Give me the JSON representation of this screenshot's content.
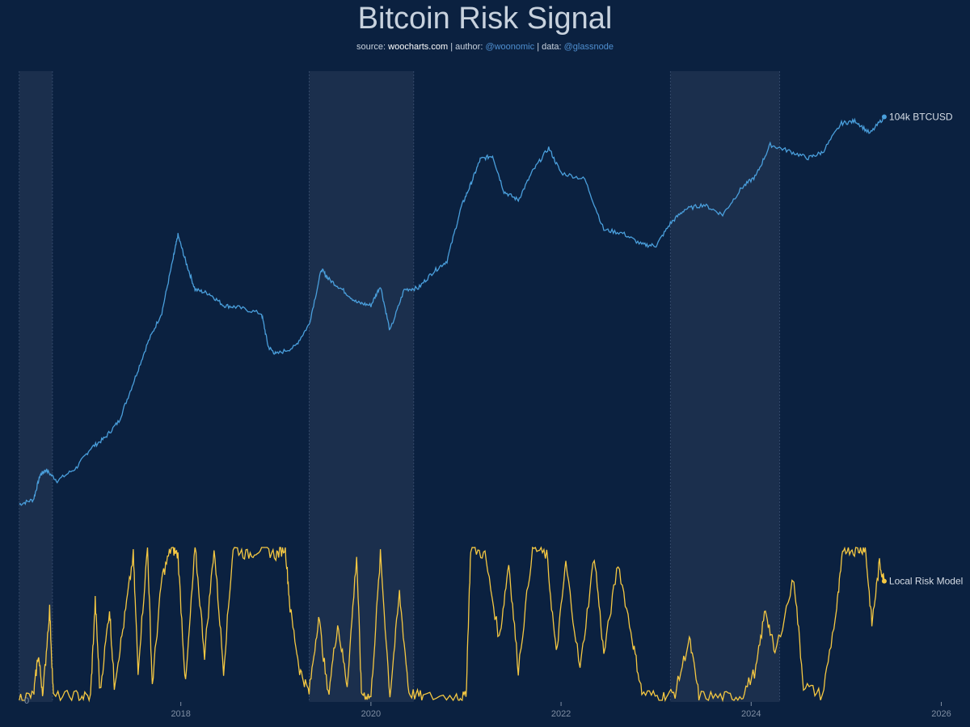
{
  "header": {
    "title": "Bitcoin Risk Signal",
    "subtitle": {
      "source_prefix": "source: ",
      "source": "woocharts.com",
      "author_prefix": " | author: ",
      "author": "@woonomic",
      "data_prefix": " | data: ",
      "data": "@glassnode"
    }
  },
  "colors": {
    "background": "#0b2140",
    "price_line": "#4a9fdc",
    "risk_line": "#f5c842",
    "shaded_band": "#1f3150",
    "tick_text": "#7f8ea3",
    "end_label_text": "#d6dde6"
  },
  "chart_data": {
    "type": "line",
    "title": "Bitcoin Risk Signal",
    "x_axis": {
      "ticks": [
        "2018",
        "2020",
        "2022",
        "2024",
        "2026"
      ],
      "range": [
        2016.2,
        2026.2
      ]
    },
    "y_axis_risk": {
      "ticks": [
        "0"
      ],
      "range": [
        0,
        1
      ]
    },
    "y_axis_price": {
      "scale": "log",
      "range": [
        300,
        130000
      ],
      "labels_shown": false
    },
    "shaded_periods": [
      {
        "start": 2016.3,
        "end": 2016.65
      },
      {
        "start": 2019.35,
        "end": 2020.45
      },
      {
        "start": 2023.15,
        "end": 2024.3
      }
    ],
    "series": [
      {
        "name": "BTCUSD",
        "end_label": "104k BTCUSD",
        "points": [
          [
            2016.3,
            430
          ],
          [
            2016.45,
            460
          ],
          [
            2016.52,
            650
          ],
          [
            2016.58,
            700
          ],
          [
            2016.7,
            600
          ],
          [
            2016.9,
            720
          ],
          [
            2017.05,
            950
          ],
          [
            2017.2,
            1100
          ],
          [
            2017.35,
            1400
          ],
          [
            2017.5,
            2400
          ],
          [
            2017.65,
            4200
          ],
          [
            2017.8,
            6500
          ],
          [
            2017.92,
            14000
          ],
          [
            2017.97,
            19500
          ],
          [
            2018.05,
            13500
          ],
          [
            2018.15,
            9000
          ],
          [
            2018.3,
            8500
          ],
          [
            2018.45,
            7200
          ],
          [
            2018.6,
            7000
          ],
          [
            2018.85,
            6400
          ],
          [
            2018.92,
            4000
          ],
          [
            2019.0,
            3600
          ],
          [
            2019.2,
            4000
          ],
          [
            2019.35,
            5500
          ],
          [
            2019.48,
            12000
          ],
          [
            2019.55,
            10500
          ],
          [
            2019.7,
            9000
          ],
          [
            2019.85,
            7500
          ],
          [
            2020.0,
            7200
          ],
          [
            2020.1,
            9500
          ],
          [
            2020.2,
            5000
          ],
          [
            2020.35,
            9000
          ],
          [
            2020.5,
            9200
          ],
          [
            2020.65,
            11500
          ],
          [
            2020.8,
            13500
          ],
          [
            2020.95,
            29000
          ],
          [
            2021.05,
            40000
          ],
          [
            2021.15,
            57000
          ],
          [
            2021.28,
            60000
          ],
          [
            2021.4,
            36000
          ],
          [
            2021.55,
            32000
          ],
          [
            2021.7,
            48000
          ],
          [
            2021.87,
            67000
          ],
          [
            2022.0,
            47000
          ],
          [
            2022.25,
            43000
          ],
          [
            2022.45,
            21000
          ],
          [
            2022.65,
            20000
          ],
          [
            2022.85,
            17000
          ],
          [
            2023.0,
            16800
          ],
          [
            2023.15,
            23000
          ],
          [
            2023.3,
            28000
          ],
          [
            2023.5,
            30000
          ],
          [
            2023.7,
            26000
          ],
          [
            2023.9,
            38000
          ],
          [
            2024.05,
            45000
          ],
          [
            2024.2,
            70000
          ],
          [
            2024.4,
            64000
          ],
          [
            2024.6,
            58000
          ],
          [
            2024.75,
            63000
          ],
          [
            2024.95,
            95000
          ],
          [
            2025.1,
            98000
          ],
          [
            2025.25,
            82000
          ],
          [
            2025.4,
            104000
          ]
        ]
      },
      {
        "name": "Local Risk Model",
        "end_label": "Local Risk Model",
        "points": [
          [
            2016.3,
            0.02
          ],
          [
            2016.45,
            0.03
          ],
          [
            2016.5,
            0.3
          ],
          [
            2016.55,
            0.04
          ],
          [
            2016.62,
            0.6
          ],
          [
            2016.66,
            0.02
          ],
          [
            2016.9,
            0.03
          ],
          [
            2017.05,
            0.02
          ],
          [
            2017.1,
            0.65
          ],
          [
            2017.15,
            0.05
          ],
          [
            2017.25,
            0.6
          ],
          [
            2017.3,
            0.1
          ],
          [
            2017.4,
            0.5
          ],
          [
            2017.5,
            0.95
          ],
          [
            2017.55,
            0.2
          ],
          [
            2017.65,
            1.0
          ],
          [
            2017.7,
            0.1
          ],
          [
            2017.8,
            0.8
          ],
          [
            2017.9,
            1.0
          ],
          [
            2017.97,
            0.95
          ],
          [
            2018.05,
            0.1
          ],
          [
            2018.15,
            1.0
          ],
          [
            2018.25,
            0.3
          ],
          [
            2018.35,
            1.0
          ],
          [
            2018.45,
            0.2
          ],
          [
            2018.55,
            1.0
          ],
          [
            2018.7,
            0.95
          ],
          [
            2018.85,
            1.0
          ],
          [
            2019.0,
            0.95
          ],
          [
            2019.1,
            1.0
          ],
          [
            2019.15,
            0.6
          ],
          [
            2019.25,
            0.2
          ],
          [
            2019.35,
            0.05
          ],
          [
            2019.45,
            0.55
          ],
          [
            2019.55,
            0.03
          ],
          [
            2019.65,
            0.5
          ],
          [
            2019.75,
            0.1
          ],
          [
            2019.85,
            0.95
          ],
          [
            2019.9,
            0.05
          ],
          [
            2020.0,
            0.02
          ],
          [
            2020.1,
            0.95
          ],
          [
            2020.2,
            0.03
          ],
          [
            2020.3,
            0.7
          ],
          [
            2020.4,
            0.05
          ],
          [
            2020.55,
            0.02
          ],
          [
            2020.9,
            0.03
          ],
          [
            2021.0,
            0.02
          ],
          [
            2021.05,
            1.0
          ],
          [
            2021.2,
            0.95
          ],
          [
            2021.35,
            0.4
          ],
          [
            2021.45,
            0.9
          ],
          [
            2021.55,
            0.2
          ],
          [
            2021.7,
            1.0
          ],
          [
            2021.85,
            0.95
          ],
          [
            2021.95,
            0.3
          ],
          [
            2022.05,
            0.9
          ],
          [
            2022.2,
            0.2
          ],
          [
            2022.35,
            0.95
          ],
          [
            2022.45,
            0.3
          ],
          [
            2022.6,
            0.9
          ],
          [
            2022.75,
            0.4
          ],
          [
            2022.85,
            0.05
          ],
          [
            2023.05,
            0.02
          ],
          [
            2023.2,
            0.05
          ],
          [
            2023.35,
            0.4
          ],
          [
            2023.45,
            0.03
          ],
          [
            2023.7,
            0.02
          ],
          [
            2023.9,
            0.03
          ],
          [
            2024.05,
            0.2
          ],
          [
            2024.15,
            0.6
          ],
          [
            2024.25,
            0.3
          ],
          [
            2024.45,
            0.8
          ],
          [
            2024.55,
            0.1
          ],
          [
            2024.75,
            0.03
          ],
          [
            2024.9,
            0.6
          ],
          [
            2024.97,
            1.0
          ],
          [
            2025.1,
            0.98
          ],
          [
            2025.2,
            1.0
          ],
          [
            2025.27,
            0.5
          ],
          [
            2025.35,
            0.9
          ],
          [
            2025.4,
            0.78
          ]
        ]
      }
    ],
    "grid": false,
    "legend": "end-of-line labels"
  }
}
